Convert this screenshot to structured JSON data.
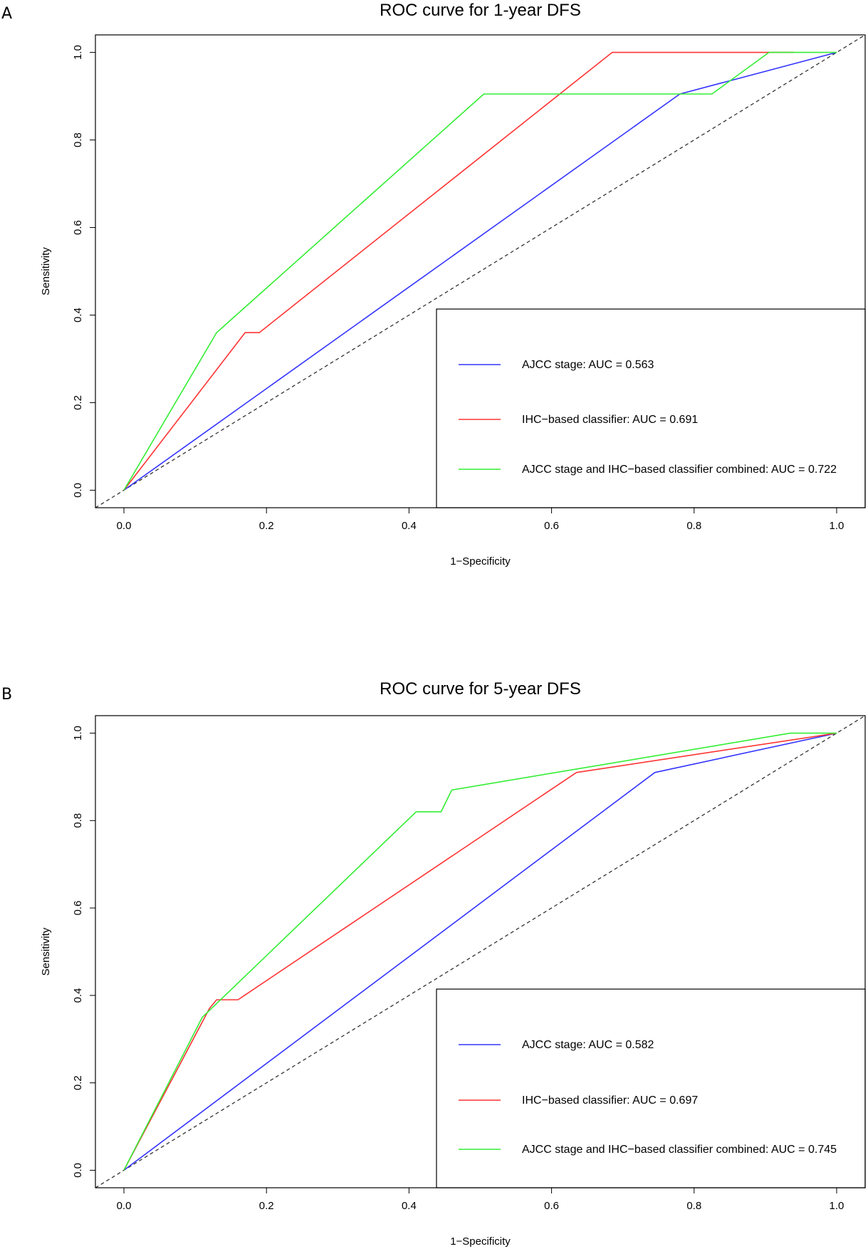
{
  "chart_data": [
    {
      "panel_label": "A",
      "type": "line",
      "title": "ROC curve for 1-year DFS",
      "xlabel": "1−Specificity",
      "ylabel": "Sensitivity",
      "xlim": [
        -0.04,
        1.04
      ],
      "ylim": [
        -0.04,
        1.04
      ],
      "xticks": [
        "0.0",
        "0.2",
        "0.4",
        "0.6",
        "0.8",
        "1.0"
      ],
      "yticks": [
        "0.0",
        "0.2",
        "0.4",
        "0.6",
        "0.8",
        "1.0"
      ],
      "reference_line": {
        "style": "dashed",
        "color": "#333333",
        "from": [
          -0.04,
          -0.04
        ],
        "to": [
          1.04,
          1.04
        ]
      },
      "legend_position": "bottom-right",
      "series": [
        {
          "name": "AJCC stage",
          "label": "AJCC stage:   AUC = 0.563",
          "color": "#3333ff",
          "x": [
            0,
            0.78,
            1.0
          ],
          "y": [
            0,
            0.905,
            1.0
          ]
        },
        {
          "name": "IHC-based classifier",
          "label": "IHC−based classifier: AUC = 0.691",
          "color": "#ff3333",
          "x": [
            0,
            0.17,
            0.19,
            0.685,
            0.94
          ],
          "y": [
            0,
            0.36,
            0.36,
            1.0,
            1.0
          ]
        },
        {
          "name": "AJCC stage and IHC-based classifier combined",
          "label": "AJCC stage and IHC−based classifier combined: AUC = 0.722",
          "color": "#33ee33",
          "x": [
            0,
            0.13,
            0.505,
            0.825,
            0.905,
            1.0
          ],
          "y": [
            0,
            0.36,
            0.905,
            0.905,
            1.0,
            1.0
          ]
        }
      ]
    },
    {
      "panel_label": "B",
      "type": "line",
      "title": "ROC curve for 5-year DFS",
      "xlabel": "1−Specificity",
      "ylabel": "Sensitivity",
      "xlim": [
        -0.04,
        1.04
      ],
      "ylim": [
        -0.04,
        1.04
      ],
      "xticks": [
        "0.0",
        "0.2",
        "0.4",
        "0.6",
        "0.8",
        "1.0"
      ],
      "yticks": [
        "0.0",
        "0.2",
        "0.4",
        "0.6",
        "0.8",
        "1.0"
      ],
      "reference_line": {
        "style": "dashed",
        "color": "#333333",
        "from": [
          -0.04,
          -0.04
        ],
        "to": [
          1.04,
          1.04
        ]
      },
      "legend_position": "bottom-right",
      "series": [
        {
          "name": "AJCC stage",
          "label": "AJCC stage: AUC = 0.582",
          "color": "#3333ff",
          "x": [
            0,
            0.745,
            1.0
          ],
          "y": [
            0,
            0.91,
            1.0
          ]
        },
        {
          "name": "IHC-based classifier",
          "label": "IHC−based classifier: AUC = 0.697",
          "color": "#ff3333",
          "x": [
            0,
            0.12,
            0.13,
            0.16,
            0.635,
            1.0
          ],
          "y": [
            0,
            0.37,
            0.39,
            0.39,
            0.91,
            1.0
          ]
        },
        {
          "name": "AJCC stage and IHC-based classifier combined",
          "label": "AJCC stage and IHC−based classifier combined: AUC = 0.745",
          "color": "#33ee33",
          "x": [
            0,
            0.11,
            0.41,
            0.445,
            0.46,
            0.935,
            1.0
          ],
          "y": [
            0,
            0.35,
            0.82,
            0.82,
            0.87,
            1.0,
            1.0
          ]
        }
      ]
    }
  ]
}
